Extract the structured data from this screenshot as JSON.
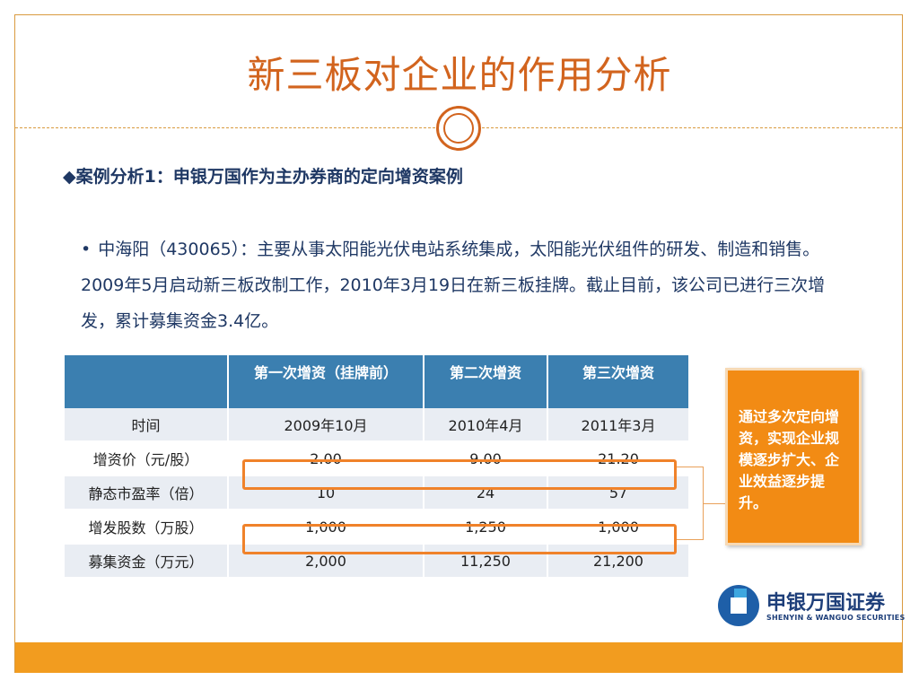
{
  "slide": {
    "title": "新三板对企业的作用分析",
    "case_heading": "◆案例分析1：申银万国作为主办券商的定向增资案例",
    "bullet": "•",
    "paragraph": "中海阳（430065）：主要从事太阳能光伏电站系统集成，太阳能光伏组件的研发、制造和销售。2009年5月启动新三板改制工作，2010年3月19日在新三板挂牌。截止目前，该公司已进行三次增发，累计募集资金3.4亿。"
  },
  "table": {
    "headers": [
      "",
      "第一次增资（挂牌前）",
      "第二次增资",
      "第三次增资"
    ],
    "rows": [
      {
        "label": "时间",
        "values": [
          "2009年10月",
          "2010年4月",
          "2011年3月"
        ]
      },
      {
        "label": "增资价（元/股）",
        "values": [
          "2.00",
          "9.00",
          "21.20"
        ]
      },
      {
        "label": "静态市盈率（倍）",
        "values": [
          "10",
          "24",
          "57"
        ]
      },
      {
        "label": "增发股数（万股）",
        "values": [
          "1,000",
          "1,250",
          "1,000"
        ]
      },
      {
        "label": "募集资金（万元）",
        "values": [
          "2,000",
          "11,250",
          "21,200"
        ]
      }
    ]
  },
  "callout": {
    "text": "通过多次定向增资，实现企业规模逐步扩大、企业效益逐步提升。"
  },
  "logo": {
    "cn": "申银万国证券",
    "en": "SHENYIN & WANGUO SECURITIES"
  },
  "colors": {
    "title": "#d2641e",
    "accent": "#f28b14",
    "header_bg": "#3b7fb0",
    "text_blue": "#1f3864"
  }
}
